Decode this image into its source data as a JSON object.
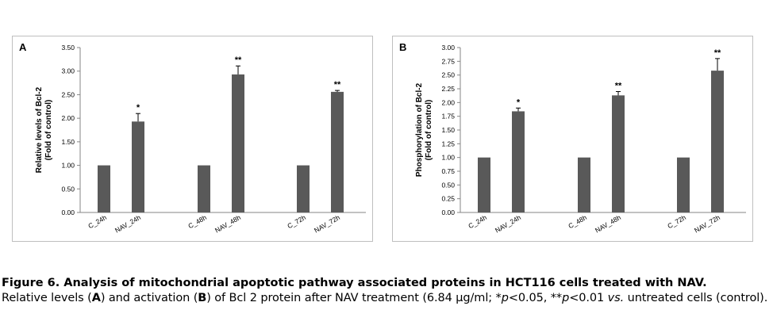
{
  "chart_data": [
    {
      "type": "bar",
      "panel_label": "A",
      "ylabel_line1": "Relative levels of  Bcl-2",
      "ylabel_line2": "(Fold of control)",
      "xlabel": "",
      "ylim": [
        0,
        3.5
      ],
      "yticks": [
        "0.00",
        "0.50",
        "1.00",
        "1.50",
        "2.00",
        "2.50",
        "3.00",
        "3.50"
      ],
      "categories": [
        "C_24h",
        "NAV_24h",
        "C_48h",
        "NAV_48h",
        "C_72h",
        "NAV_72h"
      ],
      "values": [
        1.0,
        1.93,
        1.0,
        2.93,
        1.0,
        2.56
      ],
      "errors": [
        0,
        0.17,
        0,
        0.18,
        0,
        0.03
      ],
      "annotations": [
        "",
        "*",
        "",
        "**",
        "",
        "**"
      ],
      "grid": false,
      "bar_color": "#595959"
    },
    {
      "type": "bar",
      "panel_label": "B",
      "ylabel_line1": "Phosphorylation of Bcl-2",
      "ylabel_line2": "(Fold of control)",
      "xlabel": "",
      "ylim": [
        0,
        3.0
      ],
      "yticks": [
        "0.00",
        "0.25",
        "0.50",
        "0.75",
        "1.00",
        "1.25",
        "1.50",
        "1.75",
        "2.00",
        "2.25",
        "2.50",
        "2.75",
        "3.00"
      ],
      "categories": [
        "C_24h",
        "NAV_24h",
        "C_48h",
        "NAV_48h",
        "C_72h",
        "NAV_72h"
      ],
      "values": [
        1.0,
        1.84,
        1.0,
        2.13,
        1.0,
        2.58
      ],
      "errors": [
        0,
        0.06,
        0,
        0.07,
        0,
        0.22
      ],
      "annotations": [
        "",
        "*",
        "",
        "**",
        "",
        "**"
      ],
      "grid": false,
      "bar_color": "#595959"
    }
  ],
  "caption": {
    "title": "Figure 6. Analysis of mitochondrial apoptotic pathway associated proteins in HCT116 cells treated with NAV.",
    "body_parts": [
      {
        "t": "Relative levels (",
        "b": false,
        "i": false
      },
      {
        "t": "A",
        "b": true,
        "i": false
      },
      {
        "t": ") and activation (",
        "b": false,
        "i": false
      },
      {
        "t": "B",
        "b": true,
        "i": false
      },
      {
        "t": ") of Bcl 2 protein after NAV treatment (6.84 µg/ml; *",
        "b": false,
        "i": false
      },
      {
        "t": "p",
        "b": false,
        "i": true
      },
      {
        "t": "<0.05, **",
        "b": false,
        "i": false
      },
      {
        "t": "p",
        "b": false,
        "i": true
      },
      {
        "t": "<0.01 ",
        "b": false,
        "i": false
      },
      {
        "t": "vs.",
        "b": false,
        "i": true
      },
      {
        "t": " untreated cells (control).",
        "b": false,
        "i": false
      }
    ]
  }
}
